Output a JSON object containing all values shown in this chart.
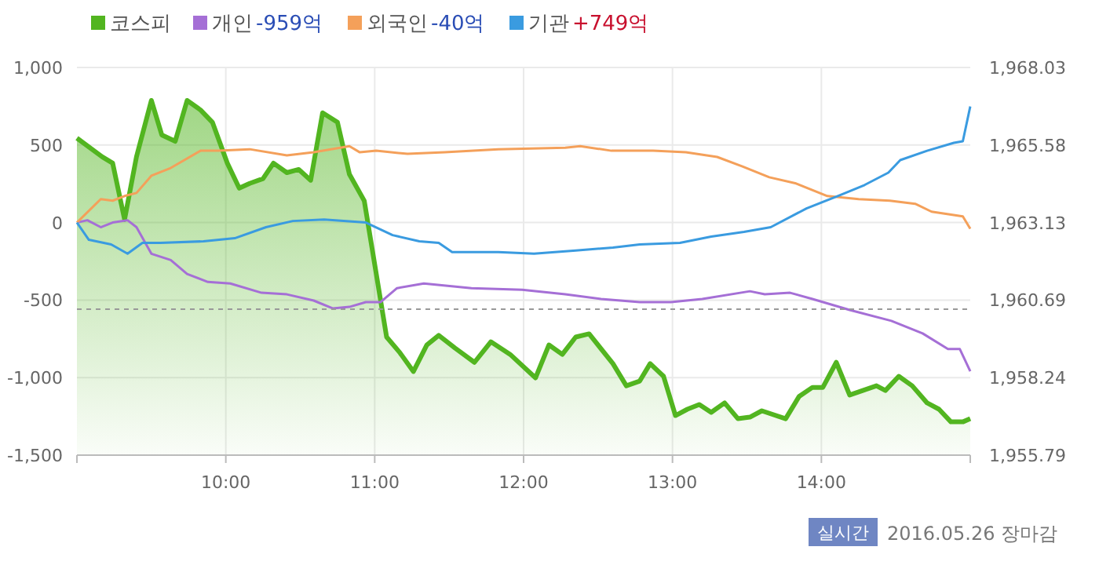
{
  "chart_data": {
    "type": "line",
    "xlim": [
      9,
      15
    ],
    "xticks": [
      {
        "value": 10,
        "label": "10:00"
      },
      {
        "value": 11,
        "label": "11:00"
      },
      {
        "value": 12,
        "label": "12:00"
      },
      {
        "value": 13,
        "label": "13:00"
      },
      {
        "value": 14,
        "label": "14:00"
      }
    ],
    "ylim": [
      -1500,
      1000
    ],
    "yticks": [
      {
        "value": -1500,
        "label": "-1,500"
      },
      {
        "value": -1000,
        "label": "-1,000"
      },
      -500,
      0,
      500,
      {
        "value": 1000,
        "label": "1,000"
      }
    ],
    "y2lim": [
      1955.79,
      1968.03
    ],
    "y2ticks": [
      {
        "value": 1955.79,
        "label": "1,955.79"
      },
      {
        "value": 1958.24,
        "label": "1,958.24"
      },
      {
        "value": 1960.69,
        "label": "1,960.69"
      },
      {
        "value": 1963.13,
        "label": "1,963.13"
      },
      {
        "value": 1965.58,
        "label": "1,965.58"
      },
      {
        "value": 1968.03,
        "label": "1,968.03"
      }
    ],
    "grid": true,
    "legend": "top left",
    "marker": "none",
    "ref_lines": [
      {
        "axis": "y2",
        "value": 1960.4,
        "color": "#999999",
        "line_style": "dashed"
      }
    ],
    "annotations": [
      "-959억",
      "-40억",
      "+749억",
      "실시간",
      "2016.05.26 장마감"
    ],
    "series": [
      {
        "name": "코스피",
        "type": "area",
        "axis": "y2",
        "color": "#52b520",
        "x": [
          9,
          9.17,
          9.24,
          9.32,
          9.4,
          9.5,
          9.57,
          9.66,
          9.74,
          9.83,
          9.91,
          10.01,
          10.09,
          10.16,
          10.25,
          10.32,
          10.41,
          10.49,
          10.57,
          10.65,
          10.75,
          10.83,
          10.93,
          11.08,
          11.17,
          11.26,
          11.35,
          11.43,
          11.54,
          11.67,
          11.78,
          11.91,
          12.08,
          12.17,
          12.26,
          12.35,
          12.44,
          12.6,
          12.69,
          12.78,
          12.85,
          12.94,
          13.02,
          13.1,
          13.18,
          13.26,
          13.35,
          13.44,
          13.52,
          13.6,
          13.76,
          13.85,
          13.94,
          14.01,
          14.1,
          14.19,
          14.37,
          14.43,
          14.52,
          14.61,
          14.71,
          14.79,
          14.87,
          14.95,
          15
        ],
        "values": [
          1965.8,
          1965.21,
          1965.01,
          1963.23,
          1965.21,
          1966.99,
          1965.9,
          1965.7,
          1966.99,
          1966.69,
          1966.3,
          1965.01,
          1964.22,
          1964.37,
          1964.52,
          1965.01,
          1964.71,
          1964.81,
          1964.47,
          1966.6,
          1966.3,
          1964.66,
          1963.82,
          1959.52,
          1959.02,
          1958.43,
          1959.27,
          1959.57,
          1959.17,
          1958.72,
          1959.37,
          1958.97,
          1958.23,
          1959.27,
          1958.97,
          1959.52,
          1959.62,
          1958.68,
          1957.98,
          1958.13,
          1958.68,
          1958.28,
          1957.04,
          1957.24,
          1957.39,
          1957.14,
          1957.44,
          1956.94,
          1956.99,
          1957.19,
          1956.94,
          1957.64,
          1957.93,
          1957.93,
          1958.72,
          1957.69,
          1957.98,
          1957.83,
          1958.28,
          1957.98,
          1957.44,
          1957.24,
          1956.84,
          1956.84,
          1956.94
        ]
      },
      {
        "name": "개인",
        "color": "#a56fd6",
        "x": [
          9,
          9.07,
          9.16,
          9.24,
          9.34,
          9.4,
          9.5,
          9.63,
          9.74,
          9.88,
          10.03,
          10.24,
          10.41,
          10.59,
          10.72,
          10.83,
          10.94,
          11.04,
          11.15,
          11.33,
          11.65,
          11.99,
          12.28,
          12.52,
          12.78,
          12.99,
          13.2,
          13.52,
          13.62,
          13.79,
          13.94,
          14.19,
          14.47,
          14.68,
          14.85,
          14.93,
          15
        ],
        "values": [
          0,
          15,
          -30,
          0,
          15,
          -30,
          -201,
          -242,
          -332,
          -383,
          -393,
          -453,
          -463,
          -503,
          -554,
          -544,
          -513,
          -513,
          -423,
          -393,
          -423,
          -433,
          -463,
          -493,
          -513,
          -513,
          -493,
          -443,
          -463,
          -453,
          -493,
          -564,
          -634,
          -715,
          -816,
          -816,
          -959
        ]
      },
      {
        "name": "외국인",
        "color": "#f4a05a",
        "x": [
          9,
          9.16,
          9.24,
          9.32,
          9.4,
          9.5,
          9.63,
          9.83,
          9.95,
          10.16,
          10.41,
          10.59,
          10.83,
          10.9,
          11.01,
          11.22,
          11.47,
          11.83,
          12.28,
          12.38,
          12.59,
          12.87,
          13.09,
          13.3,
          13.47,
          13.65,
          13.83,
          14.04,
          14.25,
          14.46,
          14.63,
          14.74,
          14.95,
          15
        ],
        "values": [
          0,
          151,
          141,
          171,
          191,
          302,
          352,
          463,
          463,
          473,
          433,
          453,
          493,
          453,
          463,
          443,
          453,
          473,
          483,
          493,
          463,
          463,
          453,
          423,
          362,
          292,
          252,
          171,
          151,
          141,
          121,
          70,
          40,
          -40
        ]
      },
      {
        "name": "기관",
        "color": "#3a9be0",
        "x": [
          9,
          9.08,
          9.23,
          9.34,
          9.44,
          9.56,
          9.85,
          10.06,
          10.27,
          10.45,
          10.66,
          10.94,
          11.12,
          11.3,
          11.43,
          11.52,
          11.83,
          12.07,
          12.35,
          12.6,
          12.78,
          13.05,
          13.26,
          13.48,
          13.66,
          13.9,
          14.11,
          14.29,
          14.45,
          14.53,
          14.71,
          14.89,
          14.95,
          15
        ],
        "values": [
          0,
          -111,
          -141,
          -201,
          -131,
          -131,
          -121,
          -101,
          -30,
          10,
          20,
          0,
          -81,
          -121,
          -131,
          -191,
          -191,
          -201,
          -181,
          -161,
          -141,
          -131,
          -91,
          -60,
          -30,
          91,
          171,
          242,
          322,
          403,
          463,
          514,
          524,
          749
        ]
      }
    ]
  }
}
